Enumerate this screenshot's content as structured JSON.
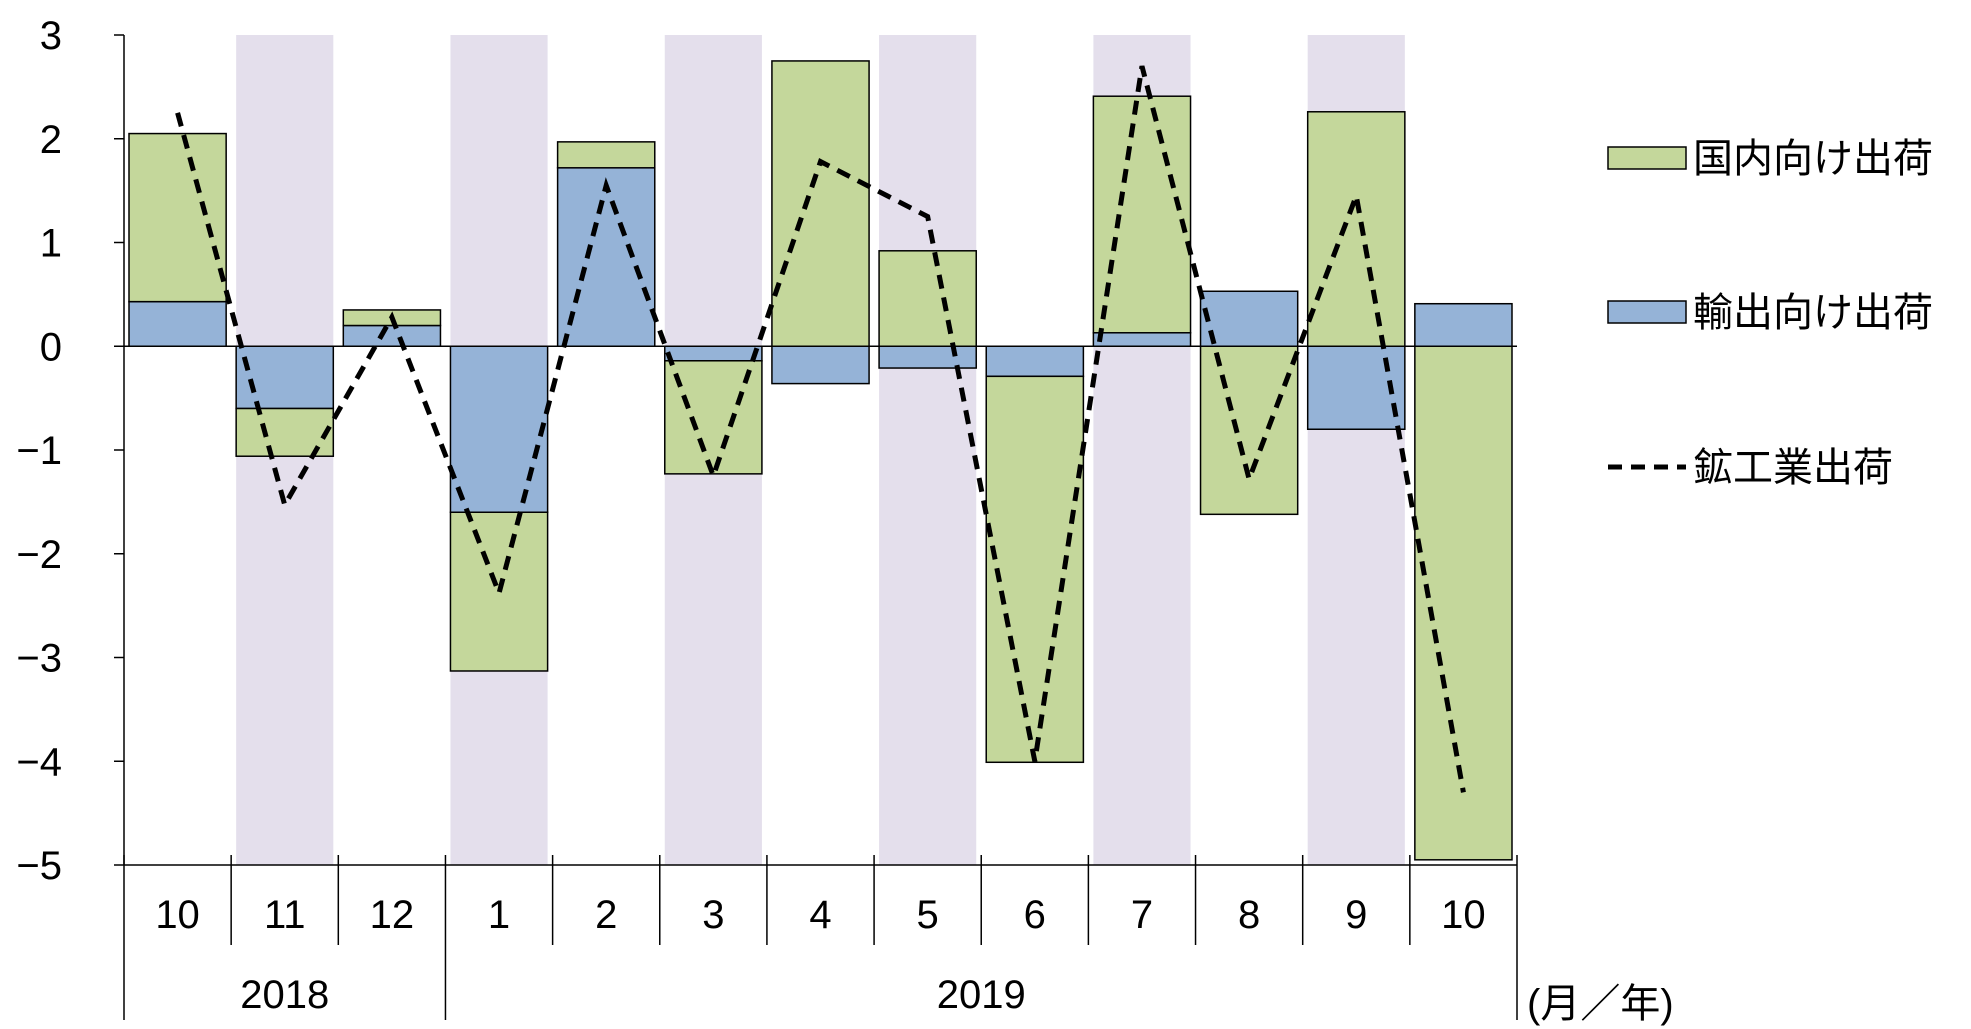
{
  "chart_data": {
    "type": "bar",
    "stacked": true,
    "categories": [
      "10",
      "11",
      "12",
      "1",
      "2",
      "3",
      "4",
      "5",
      "6",
      "7",
      "8",
      "9",
      "10"
    ],
    "years": [
      {
        "label": "2018",
        "span": [
          0,
          2
        ]
      },
      {
        "label": "2019",
        "span": [
          3,
          12
        ]
      }
    ],
    "x_unit_label": "(月／年)",
    "ylim": [
      -5,
      3
    ],
    "yticks": [
      3,
      2,
      1,
      0,
      -1,
      -2,
      -3,
      -4,
      -5
    ],
    "ytick_labels": [
      "3",
      "2",
      "1",
      "0",
      "−1",
      "−2",
      "−3",
      "−4",
      "−5"
    ],
    "shaded_categories": [
      1,
      3,
      5,
      7,
      9,
      11
    ],
    "series": [
      {
        "name": "国内向け出荷",
        "kind": "bar",
        "color": "#c4d79b",
        "values": [
          1.62,
          -0.46,
          0.15,
          -1.53,
          0.25,
          -1.09,
          2.75,
          0.92,
          -3.72,
          2.28,
          -1.62,
          2.26,
          -4.95
        ]
      },
      {
        "name": "輸出向け出荷",
        "kind": "bar",
        "color": "#95b3d7",
        "values": [
          0.43,
          -0.6,
          0.2,
          -1.6,
          1.72,
          -0.14,
          -0.36,
          -0.21,
          -0.29,
          0.13,
          0.53,
          -0.8,
          0.41
        ]
      },
      {
        "name": "鉱工業出荷",
        "kind": "line",
        "style": "dashed",
        "color": "#000000",
        "values": [
          2.25,
          -1.53,
          0.28,
          -2.38,
          1.55,
          -1.25,
          1.78,
          1.25,
          -4.0,
          2.7,
          -1.28,
          1.45,
          -4.3
        ]
      }
    ],
    "legend_position": "right",
    "shade_color": "#e4dfec",
    "grid": false
  }
}
